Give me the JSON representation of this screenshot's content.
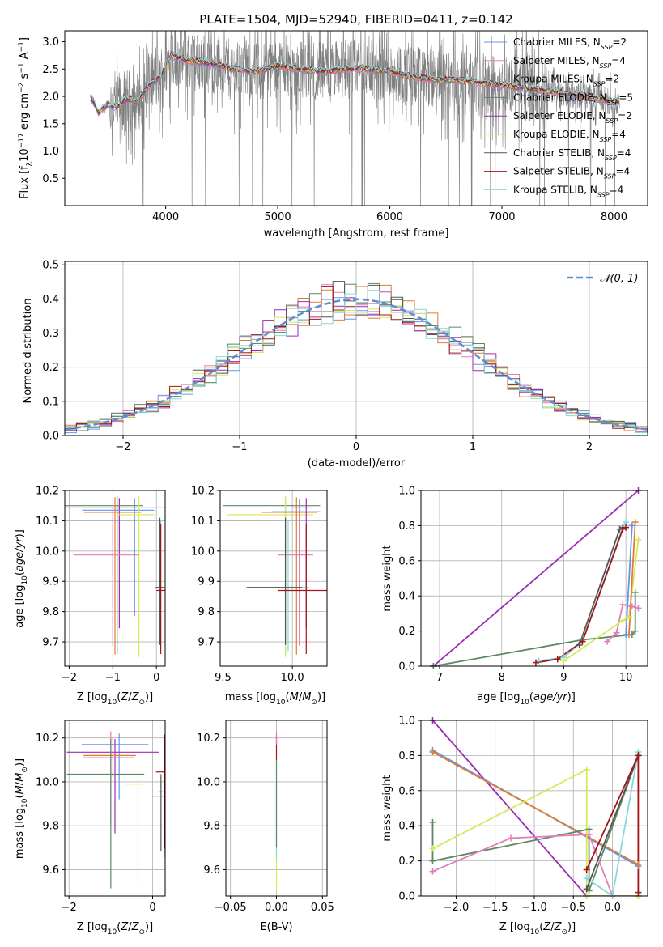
{
  "title": "PLATE=1504, MJD=52940, FIBERID=0411, z=0.142",
  "models": [
    {
      "name": "Chabrier MILES",
      "nssp": "2",
      "color": "#6495ed"
    },
    {
      "name": "Salpeter MILES",
      "nssp": "4",
      "color": "#e37cbb"
    },
    {
      "name": "Kroupa MILES",
      "nssp": "2",
      "color": "#e27b2f"
    },
    {
      "name": "Chabrier ELODIE",
      "nssp": "5",
      "color": "#5c8862"
    },
    {
      "name": "Salpeter ELODIE",
      "nssp": "2",
      "color": "#9b2db3"
    },
    {
      "name": "Kroupa ELODIE",
      "nssp": "4",
      "color": "#d4eb57"
    },
    {
      "name": "Chabrier STELIB",
      "nssp": "4",
      "color": "#555555"
    },
    {
      "name": "Salpeter STELIB",
      "nssp": "4",
      "color": "#a31414"
    },
    {
      "name": "Kroupa STELIB",
      "nssp": "4",
      "color": "#84d9dd"
    }
  ],
  "chart_data": [
    {
      "id": "spectrum",
      "type": "line",
      "title": "PLATE=1504, MJD=52940, FIBERID=0411, z=0.142",
      "xlabel": "wavelength [Angstrom, rest frame]",
      "ylabel": "Flux [f_λ 10^-17 erg cm^-2 s^-1 A^-1]",
      "xlim": [
        3100,
        8300
      ],
      "ylim": [
        0,
        3.2
      ],
      "xticks": [
        4000,
        5000,
        6000,
        7000,
        8000
      ],
      "yticks": [
        0.5,
        1.0,
        1.5,
        2.0,
        2.5,
        3.0
      ],
      "ytick_labels": [
        "0.5",
        "1.0",
        "1.5",
        "2.0",
        "2.5",
        "3.0"
      ],
      "legend_loc": "upper right",
      "data_color": "#808080",
      "continuum_anchors": {
        "x": [
          3330,
          3400,
          3480,
          3560,
          3650,
          3750,
          3850,
          3950,
          4050,
          4200,
          4400,
          4600,
          4800,
          5000,
          5200,
          5400,
          5600,
          5800,
          6000,
          6200,
          6400,
          6600,
          6800,
          7000,
          7200,
          7400,
          7600,
          7800,
          7950,
          8050
        ],
        "y": [
          2.0,
          1.7,
          1.85,
          1.8,
          1.95,
          1.9,
          2.2,
          2.35,
          2.75,
          2.65,
          2.6,
          2.5,
          2.45,
          2.55,
          2.5,
          2.45,
          2.5,
          2.5,
          2.45,
          2.35,
          2.3,
          2.3,
          2.25,
          2.2,
          2.15,
          2.1,
          2.05,
          1.98,
          1.92,
          1.9
        ]
      }
    },
    {
      "id": "residuals",
      "type": "histogram",
      "xlabel": "(data-model)/error",
      "ylabel": "Normed distribution",
      "xlim": [
        -2.5,
        2.5
      ],
      "ylim": [
        0,
        0.51
      ],
      "xticks": [
        -2,
        -1,
        0,
        1,
        2
      ],
      "xtick_labels": [
        "−2",
        "−1",
        "0",
        "1",
        "2"
      ],
      "yticks": [
        0.0,
        0.1,
        0.2,
        0.3,
        0.4,
        0.5
      ],
      "ytick_labels": [
        "0.0",
        "0.1",
        "0.2",
        "0.3",
        "0.4",
        "0.5"
      ],
      "bin_width": 0.1,
      "gaussian": {
        "name": "N(0,1)",
        "mean": 0,
        "sigma": 1,
        "color": "#5a8fd6"
      },
      "legend_loc": "upper right"
    },
    {
      "id": "age_vs_Z",
      "type": "errorbar",
      "xlabel": "Z [log10(Z/Z⊙)]",
      "ylabel": "age [log10(age/yr)]",
      "xlim": [
        -2.1,
        0.2
      ],
      "ylim": [
        9.62,
        10.2
      ],
      "xticks": [
        -2,
        -1,
        0
      ],
      "xtick_labels": [
        "−2",
        "−1",
        "0"
      ],
      "yticks": [
        9.7,
        9.8,
        9.9,
        10.0,
        10.1,
        10.2
      ],
      "ytick_labels": [
        "9.7",
        "9.8",
        "9.9",
        "10.0",
        "10.1",
        "10.2"
      ],
      "points": [
        {
          "m": 4,
          "x": -0.85,
          "xerr": [
            1.25,
            1.15
          ],
          "y": 10.145,
          "yerr": [
            0.4,
            0.03
          ]
        },
        {
          "m": 0,
          "x": -0.5,
          "xerr": [
            1.2,
            0.45
          ],
          "y": 10.135,
          "yerr": [
            0.35,
            0.04
          ]
        },
        {
          "m": 3,
          "x": -0.9,
          "xerr": [
            1.2,
            0.6
          ],
          "y": 10.15,
          "yerr": [
            0.49,
            0.03
          ]
        },
        {
          "m": 2,
          "x": -0.95,
          "xerr": [
            0.7,
            0.6
          ],
          "y": 10.128,
          "yerr": [
            0.47,
            0.05
          ]
        },
        {
          "m": 5,
          "x": -0.4,
          "xerr": [
            0.5,
            0.35
          ],
          "y": 10.12,
          "yerr": [
            0.47,
            0.06
          ]
        },
        {
          "m": 1,
          "x": -1.0,
          "xerr": [
            0.9,
            0.6
          ],
          "y": 9.987,
          "yerr": [
            0.3,
            0.16
          ]
        },
        {
          "m": 8,
          "x": 0.1,
          "xerr": [
            0.1,
            0.1
          ],
          "y": 9.88,
          "yerr": [
            0.21,
            0.22
          ]
        },
        {
          "m": 6,
          "x": 0.08,
          "xerr": [
            0.1,
            0.1
          ],
          "y": 9.88,
          "yerr": [
            0.19,
            0.23
          ]
        },
        {
          "m": 7,
          "x": 0.1,
          "xerr": [
            0.1,
            0.1
          ],
          "y": 9.87,
          "yerr": [
            0.21,
            0.22
          ]
        }
      ]
    },
    {
      "id": "age_vs_mass",
      "type": "errorbar",
      "xlabel": "mass [log10(M/M⊙)]",
      "ylabel": "",
      "xlim": [
        9.48,
        10.25
      ],
      "ylim": [
        9.62,
        10.2
      ],
      "xticks": [
        9.5,
        10.0
      ],
      "xtick_labels": [
        "9.5",
        "10.0"
      ],
      "yticks": [
        9.7,
        9.8,
        9.9,
        10.0,
        10.1,
        10.2
      ],
      "ytick_labels": [
        "9.7",
        "9.8",
        "9.9",
        "10.0",
        "10.1",
        "10.2"
      ],
      "points": [
        {
          "m": 3,
          "x": 9.95,
          "xerr": [
            0.45,
            0.25
          ],
          "y": 10.15,
          "yerr": [
            0.49,
            0.03
          ]
        },
        {
          "m": 5,
          "x": 9.95,
          "xerr": [
            0.42,
            0.2
          ],
          "y": 10.12,
          "yerr": [
            0.47,
            0.06
          ]
        },
        {
          "m": 0,
          "x": 10.05,
          "xerr": [
            0.2,
            0.15
          ],
          "y": 10.13,
          "yerr": [
            0.35,
            0.04
          ]
        },
        {
          "m": 2,
          "x": 10.03,
          "xerr": [
            0.25,
            0.15
          ],
          "y": 10.128,
          "yerr": [
            0.47,
            0.05
          ]
        },
        {
          "m": 4,
          "x": 10.1,
          "xerr": [
            0.1,
            0.05
          ],
          "y": 10.145,
          "yerr": [
            0.4,
            0.03
          ]
        },
        {
          "m": 1,
          "x": 10.05,
          "xerr": [
            0.15,
            0.1
          ],
          "y": 9.987,
          "yerr": [
            0.3,
            0.16
          ]
        },
        {
          "m": 8,
          "x": 9.97,
          "xerr": [
            0.28,
            0.15
          ],
          "y": 9.88,
          "yerr": [
            0.21,
            0.22
          ]
        },
        {
          "m": 6,
          "x": 9.95,
          "xerr": [
            0.28,
            0.12
          ],
          "y": 9.88,
          "yerr": [
            0.19,
            0.23
          ]
        },
        {
          "m": 7,
          "x": 10.1,
          "xerr": [
            0.2,
            0.15
          ],
          "y": 9.87,
          "yerr": [
            0.21,
            0.22
          ]
        }
      ]
    },
    {
      "id": "weight_vs_age",
      "type": "line",
      "xlabel": "age [log10(age/yr)]",
      "ylabel": "mass weight",
      "xlim": [
        6.7,
        10.35
      ],
      "ylim": [
        0,
        1.0
      ],
      "xticks": [
        7,
        8,
        9,
        10
      ],
      "xtick_labels": [
        "7",
        "8",
        "9",
        "10"
      ],
      "yticks": [
        0.0,
        0.2,
        0.4,
        0.6,
        0.8,
        1.0
      ],
      "ytick_labels": [
        "0.0",
        "0.2",
        "0.4",
        "0.6",
        "0.8",
        "1.0"
      ],
      "series": [
        {
          "m": 4,
          "x": [
            6.9,
            10.2
          ],
          "y": [
            0.0,
            1.0
          ]
        },
        {
          "m": 3,
          "x": [
            6.9,
            9.3,
            10.1,
            10.15,
            10.15
          ],
          "y": [
            0.0,
            0.15,
            0.18,
            0.2,
            0.42
          ]
        },
        {
          "m": 8,
          "x": [
            8.6,
            9.0,
            9.3,
            9.95,
            10.0
          ],
          "y": [
            0.03,
            0.05,
            0.14,
            0.79,
            0.82
          ]
        },
        {
          "m": 6,
          "x": [
            9.25,
            9.9,
            9.95
          ],
          "y": [
            0.12,
            0.78,
            0.79
          ]
        },
        {
          "m": 7,
          "x": [
            8.55,
            8.9,
            9.3,
            9.95,
            10.0
          ],
          "y": [
            0.02,
            0.04,
            0.14,
            0.78,
            0.79
          ]
        },
        {
          "m": 1,
          "x": [
            9.7,
            9.85,
            9.95,
            10.1,
            10.2
          ],
          "y": [
            0.14,
            0.19,
            0.35,
            0.34,
            0.33
          ]
        },
        {
          "m": 5,
          "x": [
            9.0,
            9.95,
            10.05,
            10.2
          ],
          "y": [
            0.03,
            0.26,
            0.28,
            0.72
          ]
        },
        {
          "m": 2,
          "x": [
            10.05,
            10.15
          ],
          "y": [
            0.18,
            0.82
          ]
        },
        {
          "m": 0,
          "x": [
            10.0,
            10.1
          ],
          "y": [
            0.18,
            0.8
          ]
        }
      ]
    },
    {
      "id": "mass_vs_Z",
      "type": "errorbar",
      "xlabel": "Z [log10(Z/Z⊙)]",
      "ylabel": "mass [log10(M/M⊙)]",
      "xlim": [
        -2.1,
        0.3
      ],
      "ylim": [
        9.48,
        10.28
      ],
      "xticks": [
        -2,
        0
      ],
      "xtick_labels": [
        "−2",
        "0"
      ],
      "yticks": [
        9.6,
        9.8,
        10.0,
        10.2
      ],
      "ytick_labels": [
        "9.6",
        "9.8",
        "10.0",
        "10.2"
      ],
      "points": [
        {
          "m": 0,
          "x": -0.8,
          "xerr": [
            0.9,
            0.7
          ],
          "y": 10.17,
          "yerr": [
            0.25,
            0.05
          ]
        },
        {
          "m": 4,
          "x": -0.9,
          "xerr": [
            1.15,
            1.05
          ],
          "y": 10.135,
          "yerr": [
            0.37,
            0.06
          ]
        },
        {
          "m": 2,
          "x": -0.95,
          "xerr": [
            0.7,
            0.55
          ],
          "y": 10.12,
          "yerr": [
            0.1,
            0.08
          ]
        },
        {
          "m": 1,
          "x": -1.0,
          "xerr": [
            0.65,
            0.55
          ],
          "y": 10.11,
          "yerr": [
            0.3,
            0.12
          ]
        },
        {
          "m": 3,
          "x": -1.0,
          "xerr": [
            1.05,
            0.8
          ],
          "y": 10.035,
          "yerr": [
            0.52,
            0.16
          ]
        },
        {
          "m": 5,
          "x": -0.35,
          "xerr": [
            0.3,
            0.15
          ],
          "y": 9.99,
          "yerr": [
            0.45,
            0.04
          ]
        },
        {
          "m": 8,
          "x": 0.28,
          "xerr": [
            0.15,
            0.1
          ],
          "y": 9.955,
          "yerr": [
            0.3,
            0.15
          ]
        },
        {
          "m": 6,
          "x": 0.2,
          "xerr": [
            0.2,
            0.1
          ],
          "y": 9.935,
          "yerr": [
            0.25,
            0.1
          ]
        },
        {
          "m": 7,
          "x": 0.28,
          "xerr": [
            0.2,
            0.08
          ],
          "y": 10.045,
          "yerr": [
            0.35,
            0.17
          ]
        }
      ]
    },
    {
      "id": "mass_vs_ebv",
      "type": "errorbar",
      "xlabel": "E(B-V)",
      "ylabel": "",
      "xlim": [
        -0.055,
        0.055
      ],
      "ylim": [
        9.48,
        10.28
      ],
      "xticks": [
        -0.05,
        0.0,
        0.05
      ],
      "xtick_labels": [
        "−0.05",
        "0.00",
        "0.05"
      ],
      "yticks": [
        9.6,
        9.8,
        10.0,
        10.2
      ],
      "ytick_labels": [
        "9.6",
        "9.8",
        "10.0",
        "10.2"
      ],
      "points": [
        {
          "m": 5,
          "x": 0.0,
          "xerr": [
            0,
            0
          ],
          "y": 9.7,
          "yerr": [
            0.2,
            0.0
          ]
        },
        {
          "m": 8,
          "x": 0.0,
          "xerr": [
            0,
            0
          ],
          "y": 9.9,
          "yerr": [
            0.25,
            0.1
          ]
        },
        {
          "m": 3,
          "x": 0.0,
          "xerr": [
            0,
            0
          ],
          "y": 10.0,
          "yerr": [
            0.3,
            0.1
          ]
        },
        {
          "m": 7,
          "x": 0.0,
          "xerr": [
            0,
            0
          ],
          "y": 10.15,
          "yerr": [
            0.05,
            0.06
          ]
        },
        {
          "m": 1,
          "x": 0.0,
          "xerr": [
            0,
            0
          ],
          "y": 10.2,
          "yerr": [
            0.03,
            0.03
          ]
        }
      ]
    },
    {
      "id": "weight_vs_Z",
      "type": "line",
      "xlabel": "Z [log10(Z/Z⊙)]",
      "ylabel": "mass weight",
      "xlim": [
        -2.45,
        0.45
      ],
      "ylim": [
        0,
        1.0
      ],
      "xticks": [
        -2.0,
        -1.5,
        -1.0,
        -0.5,
        0.0
      ],
      "xtick_labels": [
        "−2.0",
        "−1.5",
        "−1.0",
        "−0.5",
        "0.0"
      ],
      "yticks": [
        0.0,
        0.2,
        0.4,
        0.6,
        0.8,
        1.0
      ],
      "ytick_labels": [
        "0.0",
        "0.2",
        "0.4",
        "0.6",
        "0.8",
        "1.0"
      ],
      "series": [
        {
          "m": 4,
          "x": [
            -2.3,
            -0.33,
            0.33
          ],
          "y": [
            1.0,
            0.0,
            0.0
          ]
        },
        {
          "m": 0,
          "x": [
            -2.3,
            0.33
          ],
          "y": [
            0.83,
            0.17
          ]
        },
        {
          "m": 2,
          "x": [
            -2.3,
            0.33
          ],
          "y": [
            0.82,
            0.18
          ]
        },
        {
          "m": 5,
          "x": [
            -2.3,
            -0.33,
            -0.33,
            0.33
          ],
          "y": [
            0.27,
            0.72,
            0.0,
            0.0
          ]
        },
        {
          "m": 3,
          "x": [
            -2.3,
            -2.3,
            -0.3,
            -0.3,
            0.33
          ],
          "y": [
            0.42,
            0.2,
            0.38,
            0.03,
            0.8
          ]
        },
        {
          "m": 1,
          "x": [
            -2.3,
            -1.3,
            -0.3,
            0.0
          ],
          "y": [
            0.14,
            0.33,
            0.35,
            0.0
          ]
        },
        {
          "m": 8,
          "x": [
            -0.33,
            0.0,
            0.33
          ],
          "y": [
            0.1,
            0.0,
            0.82
          ]
        },
        {
          "m": 6,
          "x": [
            -0.33,
            0.33
          ],
          "y": [
            0.04,
            0.8
          ]
        },
        {
          "m": 7,
          "x": [
            -0.33,
            0.33,
            0.33
          ],
          "y": [
            0.15,
            0.8,
            0.02
          ]
        }
      ]
    }
  ]
}
